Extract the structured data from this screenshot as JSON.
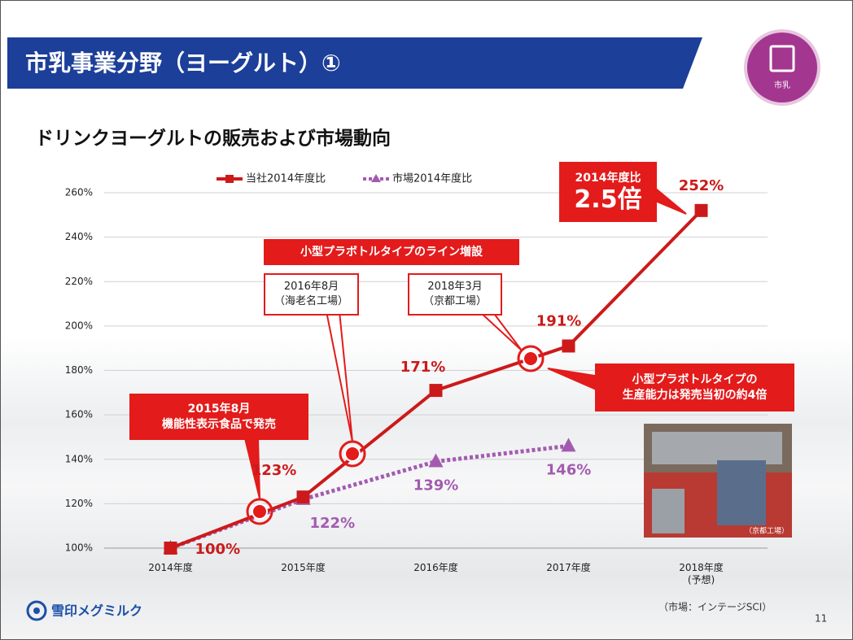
{
  "header": {
    "title": "市乳事業分野（ヨーグルト）①",
    "badge": "市乳"
  },
  "chart_data": {
    "type": "line",
    "title": "ドリンクヨーグルトの販売および市場動向",
    "categories": [
      "2014年度",
      "2015年度",
      "2016年度",
      "2017年度",
      "2018年度\n(予想)"
    ],
    "series": [
      {
        "name": "当社2014年度比",
        "color": "#cc1a1a",
        "values": [
          100,
          123,
          171,
          191,
          252
        ],
        "value_labels": [
          "100%",
          "123%",
          "171%",
          "191%",
          "252%"
        ]
      },
      {
        "name": "市場2014年度比",
        "color": "#a35bb0",
        "values": [
          100,
          122,
          139,
          146,
          null
        ],
        "value_labels": [
          "100%",
          "122%",
          "139%",
          "146%",
          null
        ]
      }
    ],
    "ylim": [
      100,
      260
    ],
    "yticks": [
      {
        "value": 100,
        "label": "100%"
      },
      {
        "value": 120,
        "label": "120%"
      },
      {
        "value": 140,
        "label": "140%"
      },
      {
        "value": 160,
        "label": "160%"
      },
      {
        "value": 180,
        "label": "180%"
      },
      {
        "value": 200,
        "label": "200%"
      },
      {
        "value": 220,
        "label": "220%"
      },
      {
        "value": 240,
        "label": "240%"
      },
      {
        "value": 260,
        "label": "260%"
      }
    ],
    "grid": true,
    "annotations": {
      "ratio_caption": "2014年度比",
      "ratio": "2.5倍",
      "line_add": "小型プラボトルタイプのライン増設",
      "ebina": "2016年8月\n（海老名工場）",
      "kyoto": "2018年3月\n（京都工場）",
      "launch": "2015年8月\n機能性表示食品で発売",
      "capacity": "小型プラボトルタイプの\n生産能力は発売当初の約4倍",
      "photo_caption": "（京都工場）"
    }
  },
  "footer": {
    "logo": "雪印メグミルク",
    "source": "（市場：インテージSCI）",
    "page": "11"
  }
}
